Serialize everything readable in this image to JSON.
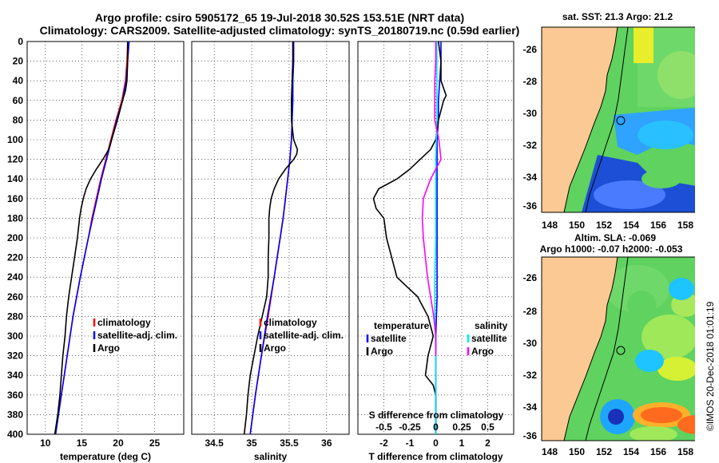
{
  "title_line1": "Argo profile: csiro 5905172_65 19-Jul-2018 30.52S 153.51E (NRT data)",
  "title_line2": "Climatology: CARS2009. Satellite-adjusted climatology: synTS_20180719.nc (0.59d earlier)",
  "timestamp": "©IMOS 20-Dec-2018 01:01:19",
  "colors": {
    "climatology": "#ff0000",
    "satellite": "#0000ff",
    "argo": "#000000",
    "sat_salinity": "#00e5ff",
    "argo_salinity": "#ff00ff",
    "land": "#fbc993"
  },
  "chart_data": [
    {
      "type": "line",
      "name": "temperature-panel",
      "xlabel": "temperature (deg C)",
      "ylim": [
        400,
        0
      ],
      "xlim": [
        7.5,
        29
      ],
      "xticks": [
        "10",
        "15",
        "20",
        "25"
      ],
      "xtick_values": [
        10,
        15,
        20,
        25
      ],
      "yticks": [
        "0",
        "20",
        "40",
        "60",
        "80",
        "100",
        "120",
        "140",
        "160",
        "180",
        "200",
        "220",
        "240",
        "260",
        "280",
        "300",
        "320",
        "340",
        "360",
        "380",
        "400"
      ],
      "ytick_values": [
        0,
        20,
        40,
        60,
        80,
        100,
        120,
        140,
        160,
        180,
        200,
        220,
        240,
        260,
        280,
        300,
        320,
        340,
        360,
        380,
        400
      ],
      "legend": [
        "climatology",
        "satellite-adj. clim.",
        "Argo"
      ],
      "series": [
        {
          "name": "climatology",
          "depth": [
            0,
            20,
            40,
            60,
            80,
            100,
            120,
            140,
            160,
            180,
            200,
            240,
            280,
            320,
            360,
            400
          ],
          "values": [
            21.3,
            21.2,
            21.0,
            20.5,
            19.7,
            19.0,
            18.3,
            17.6,
            17.0,
            16.4,
            15.9,
            14.8,
            13.8,
            13.0,
            12.2,
            11.4
          ]
        },
        {
          "name": "satellite-adj. clim.",
          "depth": [
            0,
            20,
            40,
            60,
            80,
            100,
            120,
            140,
            160,
            180,
            200,
            240,
            280,
            320,
            360,
            400
          ],
          "values": [
            21.5,
            21.3,
            21.1,
            20.6,
            19.8,
            19.1,
            18.4,
            17.7,
            17.1,
            16.5,
            15.9,
            14.8,
            13.8,
            13.0,
            12.2,
            11.4
          ]
        },
        {
          "name": "Argo",
          "depth": [
            0,
            20,
            40,
            50,
            60,
            80,
            100,
            110,
            120,
            130,
            140,
            150,
            160,
            170,
            180,
            200,
            220,
            240,
            260,
            280,
            300,
            320,
            340,
            360,
            380,
            400
          ],
          "values": [
            21.3,
            21.3,
            21.2,
            21.0,
            20.6,
            19.9,
            19.1,
            18.7,
            17.9,
            17.0,
            16.2,
            15.6,
            15.2,
            14.9,
            14.7,
            14.4,
            14.0,
            13.6,
            13.2,
            12.9,
            12.7,
            12.4,
            12.2,
            12.0,
            11.7,
            11.3
          ]
        }
      ]
    },
    {
      "type": "line",
      "name": "salinity-panel",
      "xlabel": "salinity",
      "ylim": [
        400,
        0
      ],
      "xlim": [
        34.2,
        36.3
      ],
      "xticks": [
        "34.5",
        "35",
        "35.5",
        "36"
      ],
      "xtick_values": [
        34.5,
        35,
        35.5,
        36
      ],
      "legend": [
        "climatology",
        "satellite-adj. clim.",
        "Argo"
      ],
      "series": [
        {
          "name": "climatology",
          "depth": [
            0,
            20,
            40,
            60,
            80,
            100,
            120,
            140,
            160,
            180,
            200,
            240,
            280,
            320,
            360,
            400
          ],
          "values": [
            35.55,
            35.55,
            35.54,
            35.54,
            35.54,
            35.53,
            35.51,
            35.48,
            35.45,
            35.42,
            35.38,
            35.3,
            35.22,
            35.13,
            35.05,
            34.98
          ]
        },
        {
          "name": "satellite-adj. clim.",
          "depth": [
            0,
            20,
            40,
            60,
            80,
            100,
            120,
            140,
            160,
            180,
            200,
            240,
            280,
            320,
            360,
            400
          ],
          "values": [
            35.56,
            35.56,
            35.55,
            35.55,
            35.54,
            35.53,
            35.51,
            35.48,
            35.45,
            35.42,
            35.38,
            35.3,
            35.21,
            35.13,
            35.05,
            34.98
          ]
        },
        {
          "name": "Argo",
          "depth": [
            0,
            20,
            40,
            60,
            80,
            100,
            110,
            115,
            120,
            130,
            140,
            150,
            160,
            170,
            180,
            190,
            200,
            220,
            240,
            260,
            280,
            300,
            320,
            340,
            360,
            380,
            400
          ],
          "values": [
            35.55,
            35.55,
            35.54,
            35.53,
            35.53,
            35.56,
            35.61,
            35.6,
            35.56,
            35.45,
            35.36,
            35.3,
            35.26,
            35.24,
            35.23,
            35.23,
            35.23,
            35.22,
            35.22,
            35.2,
            35.14,
            35.08,
            35.03,
            34.98,
            34.95,
            34.93,
            34.9
          ]
        }
      ]
    },
    {
      "type": "line",
      "name": "difference-panel",
      "xlabel": "T difference from climatology",
      "xlabel2": "S difference from climatology",
      "ylim": [
        400,
        0
      ],
      "xlim": [
        -3,
        3
      ],
      "xticks": [
        "-2",
        "-1",
        "0",
        "1",
        "2"
      ],
      "xtick_values": [
        -2,
        -1,
        0,
        1,
        2
      ],
      "xticks2": [
        "-0.5",
        "-0.25",
        "0",
        "0.25",
        "0.5"
      ],
      "xtick2_values": [
        -0.5,
        -0.25,
        0,
        0.25,
        0.5
      ],
      "legend_temperature": [
        "temperature",
        "satellite",
        "Argo"
      ],
      "legend_salinity": [
        "salinity",
        "satellite",
        "Argo"
      ],
      "series": [
        {
          "name": "temperature satellite",
          "depth": [
            0,
            20,
            40,
            60,
            80,
            100,
            140,
            180,
            220,
            260,
            300,
            340,
            360,
            380,
            400
          ],
          "values": [
            0.2,
            0.2,
            0.15,
            0.1,
            0.1,
            0.05,
            0.05,
            0.05,
            0.05,
            0.05,
            0.0,
            0.0,
            0.0,
            0.0,
            0.0
          ]
        },
        {
          "name": "temperature Argo",
          "depth": [
            0,
            20,
            40,
            55,
            60,
            80,
            100,
            110,
            120,
            130,
            140,
            150,
            160,
            170,
            180,
            200,
            220,
            240,
            260,
            280,
            300,
            320,
            340,
            350,
            360,
            380,
            400
          ],
          "values": [
            0.1,
            0.2,
            0.2,
            0.4,
            0.3,
            0.1,
            0.0,
            -0.2,
            -0.6,
            -1.0,
            -1.5,
            -2.2,
            -2.4,
            -2.3,
            -2.0,
            -1.9,
            -1.7,
            -1.5,
            -0.7,
            -0.3,
            -0.1,
            -0.3,
            -0.4,
            -0.1,
            0.0,
            0.0,
            0.0
          ]
        },
        {
          "name": "salinity satellite",
          "depth": [
            0,
            40,
            80,
            120,
            160,
            200,
            240,
            280,
            320,
            360,
            400
          ],
          "values": [
            0.01,
            0.01,
            0.01,
            0.0,
            0.0,
            0.0,
            -0.01,
            -0.01,
            0.0,
            0.0,
            0.0
          ]
        },
        {
          "name": "salinity Argo",
          "depth": [
            0,
            20,
            40,
            60,
            80,
            100,
            120,
            140,
            160,
            180,
            200,
            220,
            240,
            260,
            280,
            300,
            320
          ],
          "values": [
            0.0,
            0.0,
            -0.01,
            -0.01,
            -0.01,
            0.03,
            0.05,
            -0.05,
            -0.12,
            -0.13,
            -0.12,
            -0.1,
            -0.08,
            -0.05,
            -0.02,
            0.0,
            0.0
          ]
        }
      ]
    }
  ],
  "map_top": {
    "title": "sat. SST: 21.3 Argo: 21.2",
    "xticks": [
      "148",
      "150",
      "152",
      "154",
      "156",
      "158"
    ],
    "yticks": [
      "-26",
      "-28",
      "-30",
      "-32",
      "-34",
      "-36"
    ]
  },
  "map_bottom": {
    "title_line1": "Altim. SLA: -0.069",
    "title_line2": "Argo h1000: -0.07 h2000: -0.053",
    "xticks": [
      "148",
      "150",
      "152",
      "154",
      "156",
      "158"
    ],
    "yticks": [
      "-26",
      "-28",
      "-30",
      "-32",
      "-34",
      "-36"
    ]
  }
}
